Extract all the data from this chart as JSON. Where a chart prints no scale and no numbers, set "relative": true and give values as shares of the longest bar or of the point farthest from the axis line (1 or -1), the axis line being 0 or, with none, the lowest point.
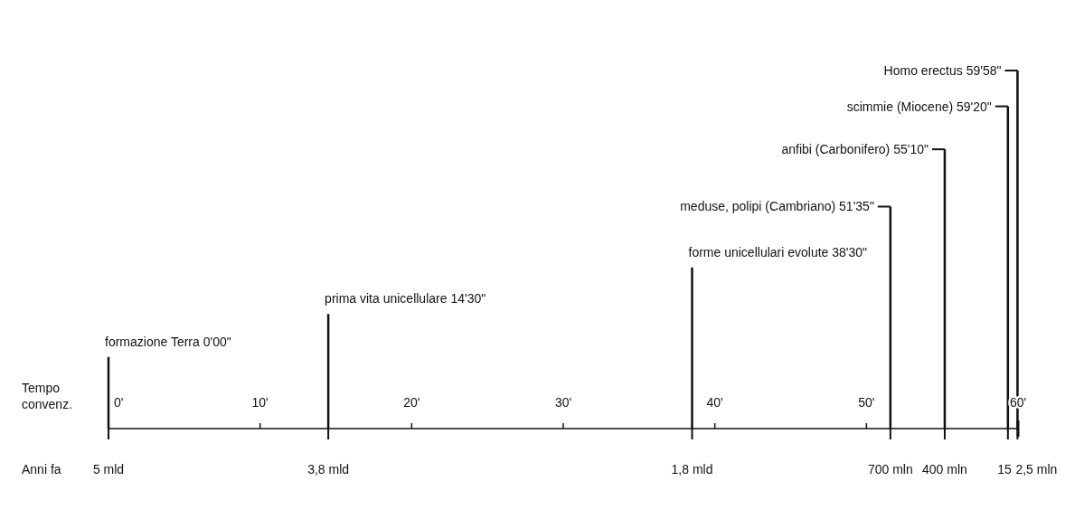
{
  "chart_data": {
    "type": "bar",
    "relative": true,
    "color": "#111111",
    "x": [
      0,
      14.5,
      38.5,
      51.583,
      55.167,
      59.333,
      59.967
    ],
    "values": [
      0.2,
      0.32,
      0.45,
      0.62,
      0.78,
      0.9,
      1
    ],
    "xlabel": "Tempo convenz.",
    "xlim": [
      0,
      60
    ],
    "xticks": [
      {
        "value": 0,
        "label": "0'"
      },
      {
        "value": 10,
        "label": "10'"
      },
      {
        "value": 20,
        "label": "20'"
      },
      {
        "value": 30,
        "label": "30'"
      },
      {
        "value": 40,
        "label": "40'"
      },
      {
        "value": 50,
        "label": "50'"
      },
      {
        "value": 60,
        "label": "60'"
      }
    ],
    "annotations": [
      {
        "text": "formazione Terra 0'00\"",
        "x": 0,
        "y": 0.2
      },
      {
        "text": "prima vita unicellulare  14'30\"",
        "x": 14.5,
        "y": 0.32
      },
      {
        "text": "forme unicellulari evolute 38'30\"",
        "x": 38.5,
        "y": 0.45
      },
      {
        "text": "meduse, polipi (Cambriano) 51'35\"",
        "x": 51.583,
        "y": 0.62
      },
      {
        "text": "anfibi (Carbonifero) 55'10\"",
        "x": 55.167,
        "y": 0.78
      },
      {
        "text": "scimmie (Miocene) 59'20\"",
        "x": 59.333,
        "y": 0.9
      },
      {
        "text": "Homo erectus 59'58\"",
        "x": 59.967,
        "y": 1
      },
      "Anni fa",
      "5 mld",
      "3,8 mld",
      "1,8 mld",
      "700 mln",
      "400 mln",
      "15",
      "2,5 mln"
    ]
  }
}
